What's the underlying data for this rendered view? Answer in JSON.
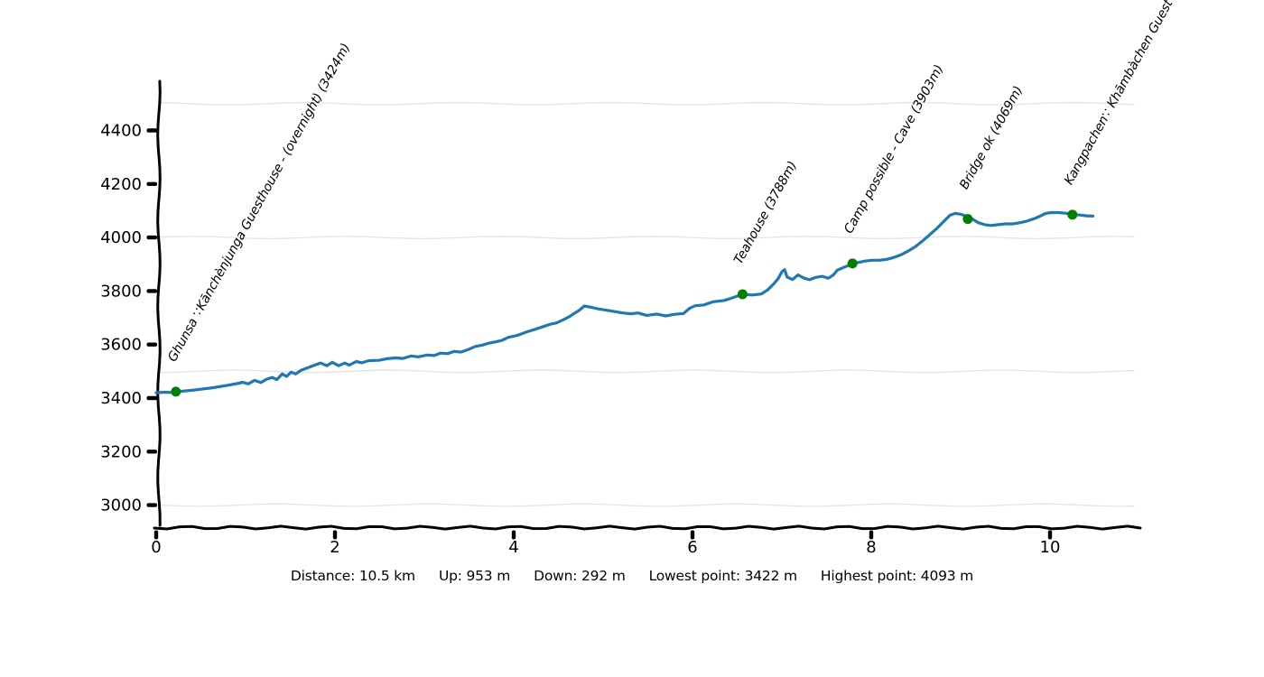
{
  "accent_colors": {
    "track_line": "#1f77b4",
    "waypoint_dot": "#008000",
    "gridline": "#e3e3e3",
    "axis": "#000000"
  },
  "chart_data": {
    "type": "line",
    "title": "",
    "xlabel": "",
    "ylabel": "",
    "style": "xkcd-handdrawn",
    "legend": "none",
    "x_ticks": [
      0,
      2,
      4,
      6,
      8,
      10
    ],
    "y_ticks": [
      3000,
      3200,
      3400,
      3600,
      3800,
      4000,
      4200,
      4400
    ],
    "gridlines_at": [
      3000,
      3500,
      4000,
      4500
    ],
    "x_range_km": [
      0,
      11.0
    ],
    "y_range_m": [
      2930,
      4590
    ],
    "track_points_km_m": [
      [
        0.0,
        3420
      ],
      [
        0.1,
        3422
      ],
      [
        0.16,
        3421
      ],
      [
        0.22,
        3424
      ],
      [
        0.3,
        3426
      ],
      [
        0.4,
        3429
      ],
      [
        0.5,
        3433
      ],
      [
        0.6,
        3437
      ],
      [
        0.7,
        3442
      ],
      [
        0.8,
        3448
      ],
      [
        0.9,
        3454
      ],
      [
        0.97,
        3459
      ],
      [
        1.03,
        3453
      ],
      [
        1.1,
        3466
      ],
      [
        1.17,
        3458
      ],
      [
        1.24,
        3471
      ],
      [
        1.3,
        3477
      ],
      [
        1.35,
        3469
      ],
      [
        1.41,
        3490
      ],
      [
        1.46,
        3481
      ],
      [
        1.51,
        3497
      ],
      [
        1.56,
        3490
      ],
      [
        1.62,
        3504
      ],
      [
        1.7,
        3514
      ],
      [
        1.78,
        3524
      ],
      [
        1.84,
        3531
      ],
      [
        1.91,
        3521
      ],
      [
        1.97,
        3534
      ],
      [
        2.04,
        3521
      ],
      [
        2.11,
        3531
      ],
      [
        2.16,
        3523
      ],
      [
        2.24,
        3537
      ],
      [
        2.3,
        3532
      ],
      [
        2.38,
        3540
      ],
      [
        2.49,
        3541
      ],
      [
        2.58,
        3547
      ],
      [
        2.68,
        3550
      ],
      [
        2.76,
        3548
      ],
      [
        2.85,
        3557
      ],
      [
        2.93,
        3554
      ],
      [
        3.03,
        3561
      ],
      [
        3.11,
        3559
      ],
      [
        3.18,
        3568
      ],
      [
        3.26,
        3566
      ],
      [
        3.33,
        3574
      ],
      [
        3.41,
        3572
      ],
      [
        3.49,
        3581
      ],
      [
        3.57,
        3593
      ],
      [
        3.65,
        3598
      ],
      [
        3.72,
        3605
      ],
      [
        3.8,
        3610
      ],
      [
        3.87,
        3616
      ],
      [
        3.94,
        3627
      ],
      [
        4.04,
        3634
      ],
      [
        4.15,
        3648
      ],
      [
        4.24,
        3657
      ],
      [
        4.33,
        3667
      ],
      [
        4.41,
        3676
      ],
      [
        4.48,
        3681
      ],
      [
        4.55,
        3692
      ],
      [
        4.62,
        3704
      ],
      [
        4.68,
        3717
      ],
      [
        4.73,
        3727
      ],
      [
        4.79,
        3744
      ],
      [
        4.87,
        3739
      ],
      [
        4.95,
        3733
      ],
      [
        5.04,
        3728
      ],
      [
        5.13,
        3723
      ],
      [
        5.22,
        3718
      ],
      [
        5.31,
        3715
      ],
      [
        5.39,
        3718
      ],
      [
        5.49,
        3709
      ],
      [
        5.6,
        3714
      ],
      [
        5.7,
        3707
      ],
      [
        5.8,
        3713
      ],
      [
        5.9,
        3716
      ],
      [
        5.97,
        3736
      ],
      [
        6.03,
        3745
      ],
      [
        6.13,
        3748
      ],
      [
        6.23,
        3760
      ],
      [
        6.36,
        3765
      ],
      [
        6.46,
        3776
      ],
      [
        6.56,
        3788
      ],
      [
        6.67,
        3785
      ],
      [
        6.77,
        3789
      ],
      [
        6.84,
        3804
      ],
      [
        6.91,
        3827
      ],
      [
        6.96,
        3847
      ],
      [
        7.0,
        3872
      ],
      [
        7.03,
        3880
      ],
      [
        7.06,
        3852
      ],
      [
        7.12,
        3843
      ],
      [
        7.18,
        3860
      ],
      [
        7.25,
        3848
      ],
      [
        7.31,
        3842
      ],
      [
        7.38,
        3851
      ],
      [
        7.45,
        3855
      ],
      [
        7.52,
        3848
      ],
      [
        7.58,
        3861
      ],
      [
        7.62,
        3878
      ],
      [
        7.69,
        3888
      ],
      [
        7.75,
        3896
      ],
      [
        7.79,
        3903
      ],
      [
        7.86,
        3907
      ],
      [
        7.93,
        3912
      ],
      [
        8.01,
        3915
      ],
      [
        8.09,
        3915
      ],
      [
        8.17,
        3918
      ],
      [
        8.25,
        3925
      ],
      [
        8.33,
        3935
      ],
      [
        8.41,
        3949
      ],
      [
        8.49,
        3965
      ],
      [
        8.57,
        3986
      ],
      [
        8.65,
        4009
      ],
      [
        8.74,
        4036
      ],
      [
        8.82,
        4063
      ],
      [
        8.88,
        4083
      ],
      [
        8.94,
        4090
      ],
      [
        9.0,
        4087
      ],
      [
        9.06,
        4080
      ],
      [
        9.14,
        4067
      ],
      [
        9.2,
        4055
      ],
      [
        9.27,
        4048
      ],
      [
        9.34,
        4045
      ],
      [
        9.42,
        4048
      ],
      [
        9.5,
        4051
      ],
      [
        9.58,
        4051
      ],
      [
        9.66,
        4055
      ],
      [
        9.74,
        4061
      ],
      [
        9.83,
        4071
      ],
      [
        9.89,
        4080
      ],
      [
        9.95,
        4090
      ],
      [
        10.01,
        4093
      ],
      [
        10.09,
        4093
      ],
      [
        10.17,
        4091
      ],
      [
        10.25,
        4086
      ],
      [
        10.33,
        4084
      ],
      [
        10.41,
        4081
      ],
      [
        10.48,
        4080
      ]
    ],
    "waypoints": [
      {
        "km": 0.22,
        "ele": 3424,
        "label": "Ghunsa ∵Kānchènjunga Guesthouse - (overnight) (3424m)"
      },
      {
        "km": 6.56,
        "ele": 3788,
        "label": "Teahouse (3788m)"
      },
      {
        "km": 7.79,
        "ele": 3903,
        "label": "Camp possible - Cave (3903m)"
      },
      {
        "km": 9.08,
        "ele": 4069,
        "label": "Bridge ok (4069m)"
      },
      {
        "km": 10.25,
        "ele": 4085,
        "label": "Kangpachen∵ Khāmbàchen Guest Ho"
      }
    ]
  },
  "stats": {
    "items": [
      {
        "label": "Distance",
        "value": "10.5 km"
      },
      {
        "label": "Up",
        "value": "953 m"
      },
      {
        "label": "Down",
        "value": "292 m"
      },
      {
        "label": "Lowest point",
        "value": "3422 m"
      },
      {
        "label": "Highest point",
        "value": "4093 m"
      }
    ]
  }
}
